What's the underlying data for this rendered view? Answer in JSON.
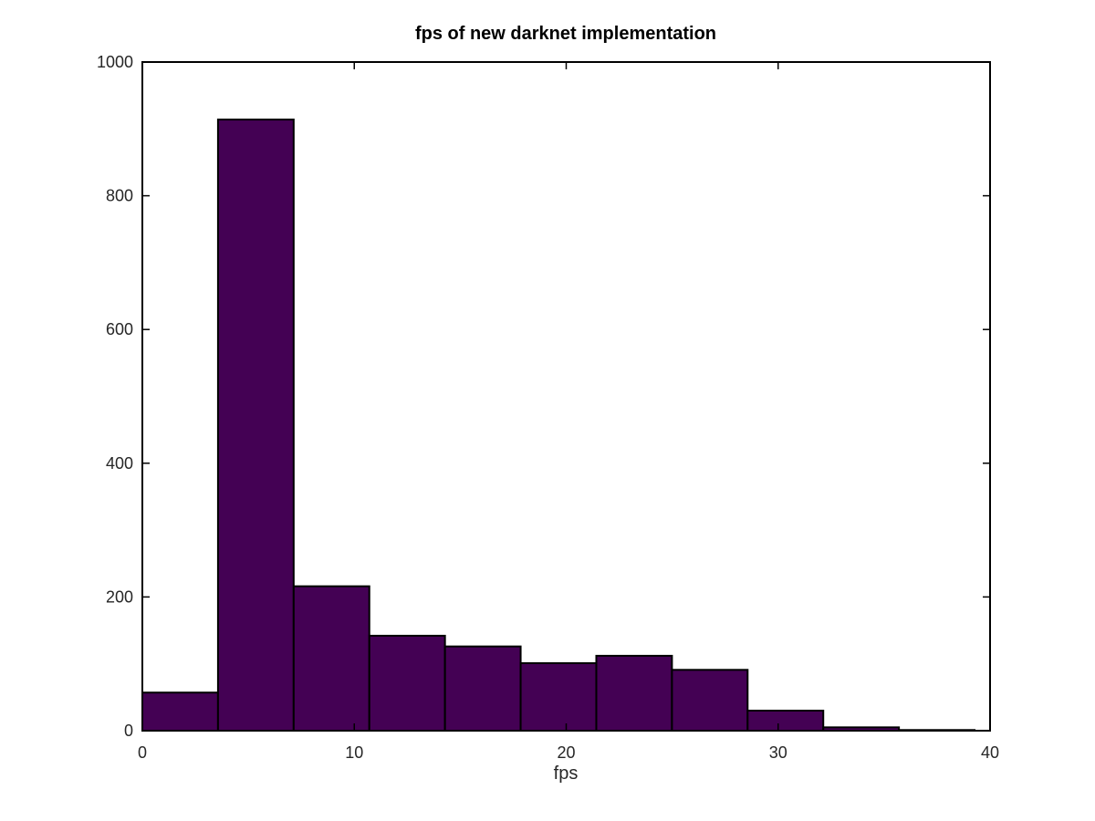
{
  "chart_data": {
    "type": "bar",
    "title": "fps of new darknet implementation",
    "xlabel": "fps",
    "ylabel": "",
    "xlim": [
      0,
      40
    ],
    "ylim": [
      0,
      1000
    ],
    "xticks": [
      0,
      10,
      20,
      30,
      40
    ],
    "yticks": [
      0,
      200,
      400,
      600,
      800,
      1000
    ],
    "bar_color": "#440154",
    "bins": [
      {
        "x0": 0.0,
        "x1": 3.57,
        "value": 57
      },
      {
        "x0": 3.57,
        "x1": 7.14,
        "value": 914
      },
      {
        "x0": 7.14,
        "x1": 10.71,
        "value": 216
      },
      {
        "x0": 10.71,
        "x1": 14.28,
        "value": 142
      },
      {
        "x0": 14.28,
        "x1": 17.85,
        "value": 126
      },
      {
        "x0": 17.85,
        "x1": 21.42,
        "value": 101
      },
      {
        "x0": 21.42,
        "x1": 24.99,
        "value": 112
      },
      {
        "x0": 24.99,
        "x1": 28.56,
        "value": 91
      },
      {
        "x0": 28.56,
        "x1": 32.13,
        "value": 30
      },
      {
        "x0": 32.13,
        "x1": 35.7,
        "value": 5
      },
      {
        "x0": 35.7,
        "x1": 39.27,
        "value": 1
      }
    ],
    "grid": false,
    "legend": "none"
  }
}
